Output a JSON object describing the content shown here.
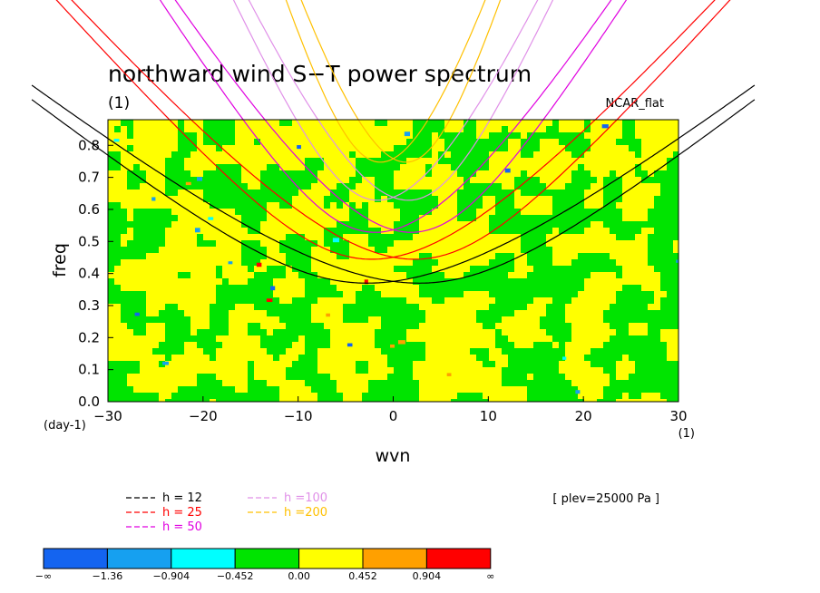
{
  "chart_data": {
    "type": "contour",
    "title": "northward wind S−T power spectrum",
    "subtitle": "(1)",
    "dataset": "NCAR_flat",
    "xlabel": "wvn",
    "ylabel": "freq",
    "x_unit": "(1)",
    "y_unit": "(day-1)",
    "xlim": [
      -30,
      30
    ],
    "ylim": [
      0,
      0.88
    ],
    "xticks": [
      -30,
      -20,
      -10,
      0,
      10,
      20,
      30
    ],
    "yticks": [
      0.0,
      0.1,
      0.2,
      0.3,
      0.4,
      0.5,
      0.6,
      0.7,
      0.8
    ],
    "level_note": "[ plev=25000 Pa ]",
    "contour_levels": [
      "−∞",
      "−1.36",
      "−0.904",
      "−0.452",
      "0.00",
      "0.452",
      "0.904",
      "∞"
    ],
    "contour_colors": [
      "#1464f0",
      "#16a0f0",
      "#00ffff",
      "#00e400",
      "#ffff00",
      "#ffa000",
      "#ff0000"
    ],
    "dispersion_curves": [
      {
        "label": "h = 12",
        "color": "#000000",
        "eq_height_m": 12
      },
      {
        "label": "h = 25",
        "color": "#ff0000",
        "eq_height_m": 25
      },
      {
        "label": "h = 50",
        "color": "#e000e0",
        "eq_height_m": 50
      },
      {
        "label": "h =100",
        "color": "#e090e8",
        "eq_height_m": 100
      },
      {
        "label": "h =200",
        "color": "#ffc000",
        "eq_height_m": 200
      }
    ],
    "dominant_field": "alternating green (-0.452 to 0.00) and yellow (0.00 to 0.452) speckle with sparse cyan, blue, orange and red spots"
  }
}
